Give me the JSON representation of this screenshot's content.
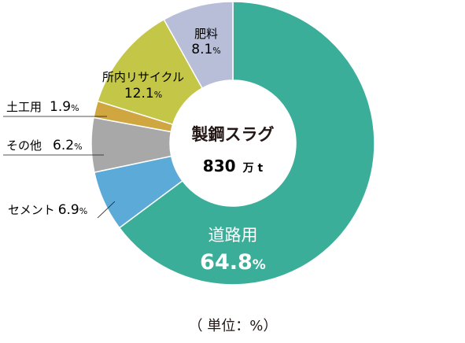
{
  "chart_data": {
    "type": "pie",
    "donut": true,
    "center_title": "製鋼スラグ",
    "center_value": "830",
    "center_unit": "万 t",
    "unit_note": "（ 単位：%）",
    "pct_suffix": "%",
    "categories": [
      "道路用",
      "セメント",
      "その他",
      "土工用",
      "所内リサイクル",
      "肥料"
    ],
    "values": [
      64.8,
      6.9,
      6.2,
      1.9,
      12.1,
      8.1
    ],
    "value_labels": [
      "64.8",
      "6.9",
      "6.2",
      "1.9",
      "12.1",
      "8.1"
    ],
    "colors": [
      "#3bae99",
      "#5baad8",
      "#a8a8a8",
      "#cfa640",
      "#c3c646",
      "#b8bed8"
    ]
  }
}
